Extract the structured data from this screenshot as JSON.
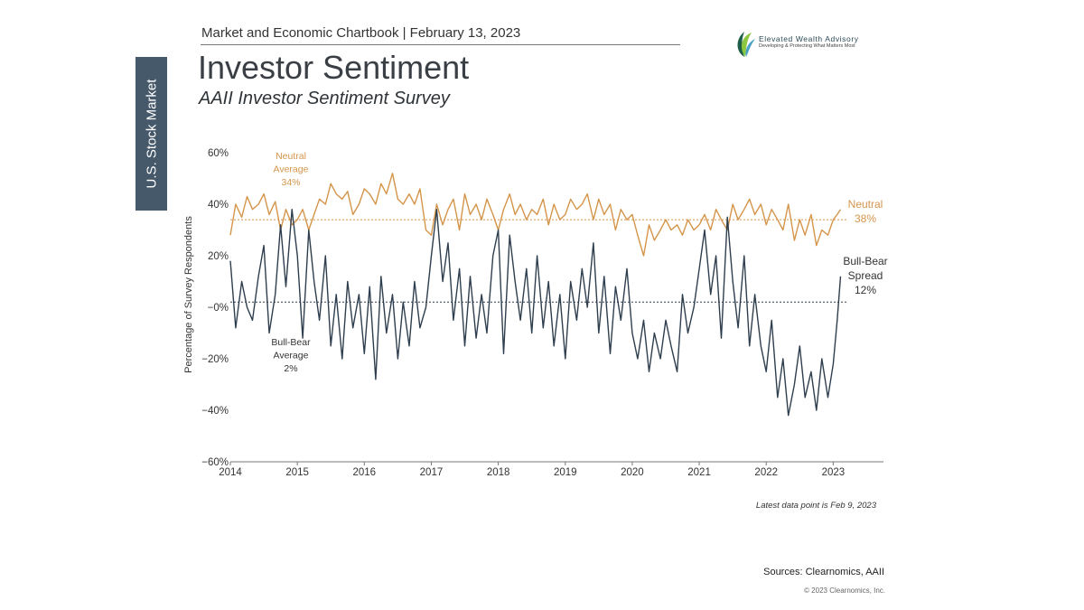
{
  "header": {
    "chartbook": "Market and Economic Chartbook | February 13, 2023",
    "section_tab": "U.S. Stock Market",
    "title": "Investor Sentiment",
    "subtitle": "AAII Investor Sentiment Survey"
  },
  "logo": {
    "name": "Elevated Wealth Advisory",
    "tagline": "Developing & Protecting What Matters Most",
    "colors": [
      "#1f5f4a",
      "#8dc63f",
      "#4aa3c7"
    ]
  },
  "footer": {
    "note": "Latest data point is Feb 9, 2023",
    "sources": "Sources: Clearnomics,  AAII",
    "copyright": "© 2023 Clearnomics, Inc."
  },
  "chart_data": {
    "type": "line",
    "ylabel": "Percentage of Survey Respondents",
    "ylim": [
      -60,
      60
    ],
    "xlim": [
      2014,
      2023.75
    ],
    "y_ticks": [
      "60%",
      "40%",
      "20%",
      "−0%",
      "−20%",
      "−40%",
      "−60%"
    ],
    "x_ticks": [
      "2014",
      "2015",
      "2016",
      "2017",
      "2018",
      "2019",
      "2020",
      "2021",
      "2022",
      "2023"
    ],
    "grid": false,
    "colors": {
      "neutral": "#d4954a",
      "spread": "#2e3e4e",
      "axis": "#777777"
    },
    "reference_lines": [
      {
        "series": "neutral",
        "value": 34
      },
      {
        "series": "spread",
        "value": 2
      }
    ],
    "annotations": {
      "neutral_avg": [
        "Neutral",
        "Average",
        "34%"
      ],
      "spread_avg": [
        "Bull-Bear",
        "Average",
        "2%"
      ],
      "neutral_last": [
        "Neutral",
        "38%"
      ],
      "spread_last": [
        "Bull-Bear",
        "Spread",
        "12%"
      ]
    },
    "series": [
      {
        "key": "neutral",
        "x": [
          2014.0,
          2014.08,
          2014.17,
          2014.25,
          2014.33,
          2014.42,
          2014.5,
          2014.58,
          2014.67,
          2014.75,
          2014.83,
          2014.92,
          2015.0,
          2015.08,
          2015.17,
          2015.25,
          2015.33,
          2015.42,
          2015.5,
          2015.58,
          2015.67,
          2015.75,
          2015.83,
          2015.92,
          2016.0,
          2016.08,
          2016.17,
          2016.25,
          2016.33,
          2016.42,
          2016.5,
          2016.58,
          2016.67,
          2016.75,
          2016.83,
          2016.92,
          2017.0,
          2017.08,
          2017.17,
          2017.25,
          2017.33,
          2017.42,
          2017.5,
          2017.58,
          2017.67,
          2017.75,
          2017.83,
          2017.92,
          2018.0,
          2018.08,
          2018.17,
          2018.25,
          2018.33,
          2018.42,
          2018.5,
          2018.58,
          2018.67,
          2018.75,
          2018.83,
          2018.92,
          2019.0,
          2019.08,
          2019.17,
          2019.25,
          2019.33,
          2019.42,
          2019.5,
          2019.58,
          2019.67,
          2019.75,
          2019.83,
          2019.92,
          2020.0,
          2020.08,
          2020.17,
          2020.25,
          2020.33,
          2020.42,
          2020.5,
          2020.58,
          2020.67,
          2020.75,
          2020.83,
          2020.92,
          2021.0,
          2021.08,
          2021.17,
          2021.25,
          2021.33,
          2021.42,
          2021.5,
          2021.58,
          2021.67,
          2021.75,
          2021.83,
          2021.92,
          2022.0,
          2022.08,
          2022.17,
          2022.25,
          2022.33,
          2022.42,
          2022.5,
          2022.58,
          2022.67,
          2022.75,
          2022.83,
          2022.92,
          2023.0,
          2023.06,
          2023.11
        ],
        "values": [
          28,
          40,
          35,
          43,
          38,
          40,
          44,
          36,
          41,
          30,
          38,
          32,
          34,
          38,
          30,
          36,
          42,
          40,
          48,
          44,
          42,
          45,
          36,
          40,
          46,
          44,
          40,
          48,
          44,
          52,
          42,
          40,
          44,
          40,
          46,
          30,
          28,
          40,
          32,
          38,
          42,
          30,
          44,
          36,
          40,
          34,
          42,
          36,
          30,
          38,
          44,
          36,
          40,
          34,
          38,
          36,
          42,
          32,
          40,
          34,
          36,
          42,
          38,
          40,
          44,
          34,
          42,
          36,
          40,
          30,
          38,
          34,
          36,
          28,
          20,
          32,
          26,
          30,
          34,
          30,
          32,
          28,
          34,
          30,
          32,
          36,
          30,
          38,
          34,
          30,
          40,
          34,
          38,
          42,
          36,
          40,
          32,
          38,
          34,
          30,
          40,
          26,
          34,
          28,
          36,
          24,
          30,
          28,
          34,
          36,
          38
        ]
      },
      {
        "key": "spread",
        "x": [
          2014.0,
          2014.08,
          2014.17,
          2014.25,
          2014.33,
          2014.42,
          2014.5,
          2014.58,
          2014.67,
          2014.75,
          2014.83,
          2014.92,
          2015.0,
          2015.08,
          2015.17,
          2015.25,
          2015.33,
          2015.42,
          2015.5,
          2015.58,
          2015.67,
          2015.75,
          2015.83,
          2015.92,
          2016.0,
          2016.08,
          2016.17,
          2016.25,
          2016.33,
          2016.42,
          2016.5,
          2016.58,
          2016.67,
          2016.75,
          2016.83,
          2016.92,
          2017.0,
          2017.08,
          2017.17,
          2017.25,
          2017.33,
          2017.42,
          2017.5,
          2017.58,
          2017.67,
          2017.75,
          2017.83,
          2017.92,
          2018.0,
          2018.08,
          2018.17,
          2018.25,
          2018.33,
          2018.42,
          2018.5,
          2018.58,
          2018.67,
          2018.75,
          2018.83,
          2018.92,
          2019.0,
          2019.08,
          2019.17,
          2019.25,
          2019.33,
          2019.42,
          2019.5,
          2019.58,
          2019.67,
          2019.75,
          2019.83,
          2019.92,
          2020.0,
          2020.08,
          2020.17,
          2020.25,
          2020.33,
          2020.42,
          2020.5,
          2020.58,
          2020.67,
          2020.75,
          2020.83,
          2020.92,
          2021.0,
          2021.08,
          2021.17,
          2021.25,
          2021.33,
          2021.42,
          2021.5,
          2021.58,
          2021.67,
          2021.75,
          2021.83,
          2021.92,
          2022.0,
          2022.08,
          2022.17,
          2022.25,
          2022.33,
          2022.42,
          2022.5,
          2022.58,
          2022.67,
          2022.75,
          2022.83,
          2022.92,
          2023.0,
          2023.06,
          2023.11
        ],
        "values": [
          18,
          -8,
          10,
          0,
          -5,
          12,
          24,
          -10,
          5,
          32,
          8,
          38,
          20,
          -12,
          30,
          10,
          -5,
          20,
          -15,
          5,
          -20,
          10,
          -8,
          5,
          -18,
          8,
          -28,
          12,
          -10,
          5,
          -20,
          2,
          -15,
          10,
          -8,
          0,
          20,
          38,
          10,
          25,
          -5,
          15,
          -15,
          12,
          -12,
          5,
          -10,
          20,
          30,
          -18,
          28,
          10,
          -5,
          15,
          -10,
          20,
          -8,
          10,
          -15,
          5,
          -20,
          10,
          -5,
          15,
          0,
          25,
          -10,
          12,
          -18,
          8,
          -5,
          15,
          -10,
          -20,
          -5,
          -25,
          -10,
          -20,
          -5,
          -15,
          -25,
          5,
          -10,
          0,
          15,
          30,
          5,
          20,
          -12,
          35,
          10,
          -8,
          20,
          -15,
          5,
          -15,
          -25,
          -5,
          -35,
          -20,
          -42,
          -30,
          -15,
          -35,
          -25,
          -40,
          -20,
          -35,
          -22,
          -5,
          12
        ]
      }
    ]
  }
}
